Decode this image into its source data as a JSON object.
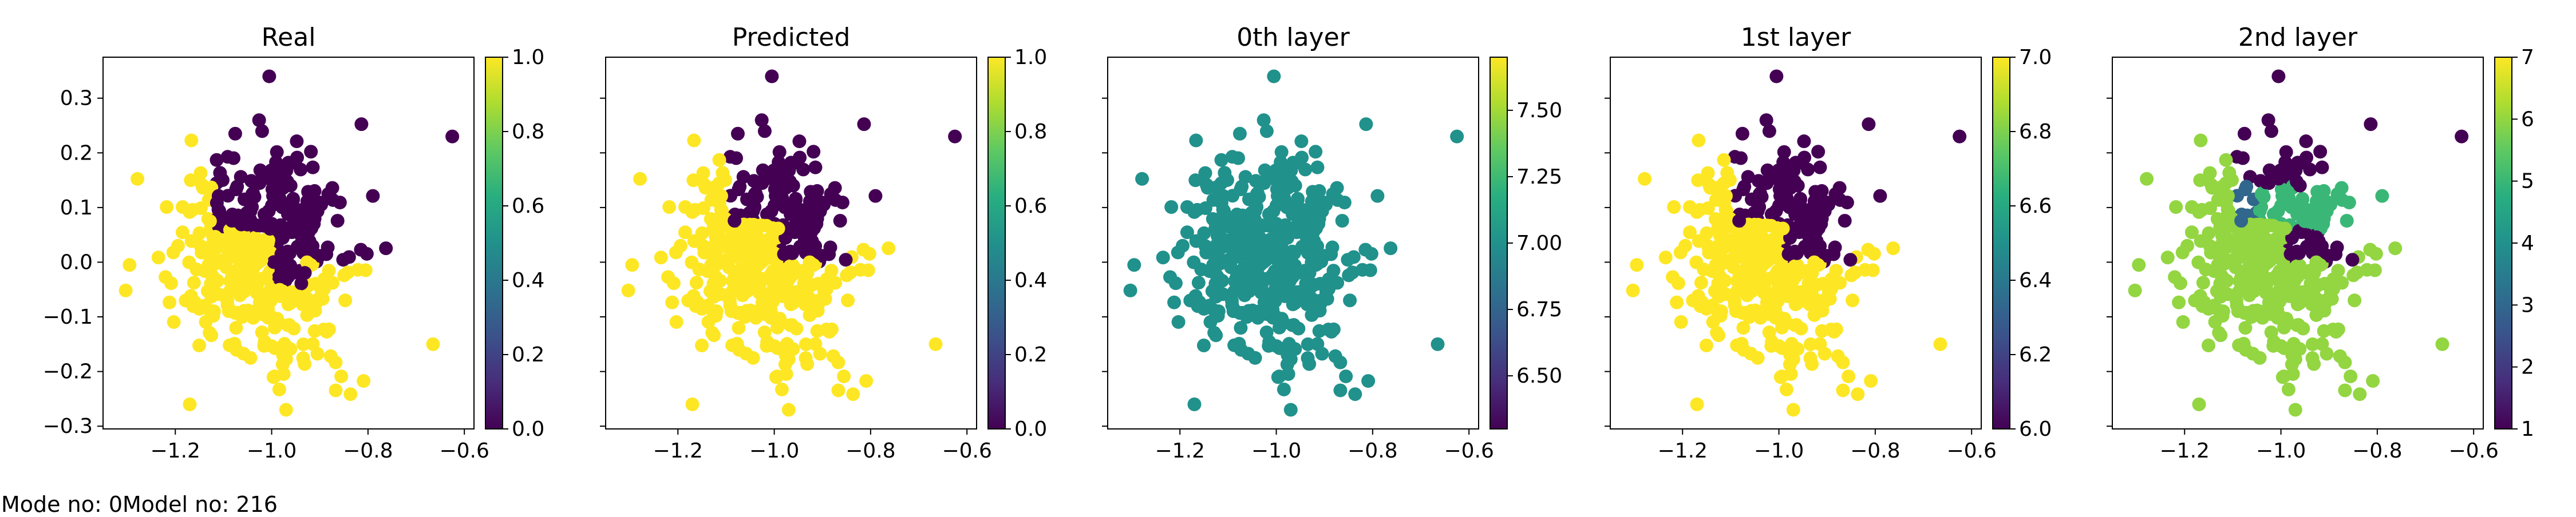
{
  "footer": {
    "text": "Mode no: 0Model no: 216"
  },
  "chart_data": [
    {
      "type": "scatter",
      "title": "Real",
      "xlabel": "",
      "ylabel": "",
      "xlim": [
        -1.35,
        -0.58
      ],
      "ylim": [
        -0.305,
        0.375
      ],
      "xticks": [
        -1.2,
        -1.0,
        -0.8,
        -0.6
      ],
      "xtick_labels": [
        "−1.2",
        "−1.0",
        "−0.8",
        "−0.6"
      ],
      "yticks": [
        -0.3,
        -0.2,
        -0.1,
        0.0,
        0.1,
        0.2,
        0.3
      ],
      "ytick_labels": [
        "−0.3",
        "−0.2",
        "−0.1",
        "0.0",
        "0.1",
        "0.2",
        "0.3"
      ],
      "show_y_tick_labels": true,
      "colormap": "viridis",
      "colorbar": {
        "vmin": 0.0,
        "vmax": 1.0,
        "ticks": [
          0.0,
          0.2,
          0.4,
          0.6,
          0.8,
          1.0
        ],
        "tick_labels": [
          "0.0",
          "0.2",
          "0.4",
          "0.6",
          "0.8",
          "1.0"
        ]
      },
      "color_rule": "real",
      "grid": false
    },
    {
      "type": "scatter",
      "title": "Predicted",
      "xlabel": "",
      "ylabel": "",
      "xlim": [
        -1.35,
        -0.58
      ],
      "ylim": [
        -0.305,
        0.375
      ],
      "xticks": [
        -1.2,
        -1.0,
        -0.8,
        -0.6
      ],
      "xtick_labels": [
        "−1.2",
        "−1.0",
        "−0.8",
        "−0.6"
      ],
      "yticks": [
        -0.3,
        -0.2,
        -0.1,
        0.0,
        0.1,
        0.2,
        0.3
      ],
      "ytick_labels": [],
      "show_y_tick_labels": false,
      "colormap": "viridis",
      "colorbar": {
        "vmin": 0.0,
        "vmax": 1.0,
        "ticks": [
          0.0,
          0.2,
          0.4,
          0.6,
          0.8,
          1.0
        ],
        "tick_labels": [
          "0.0",
          "0.2",
          "0.4",
          "0.6",
          "0.8",
          "1.0"
        ]
      },
      "color_rule": "predicted",
      "grid": false
    },
    {
      "type": "scatter",
      "title": "0th layer",
      "xlabel": "",
      "ylabel": "",
      "xlim": [
        -1.35,
        -0.58
      ],
      "ylim": [
        -0.305,
        0.375
      ],
      "xticks": [
        -1.2,
        -1.0,
        -0.8,
        -0.6
      ],
      "xtick_labels": [
        "−1.2",
        "−1.0",
        "−0.8",
        "−0.6"
      ],
      "yticks": [
        -0.3,
        -0.2,
        -0.1,
        0.0,
        0.1,
        0.2,
        0.3
      ],
      "ytick_labels": [],
      "show_y_tick_labels": false,
      "colormap": "viridis",
      "colorbar": {
        "vmin": 6.3,
        "vmax": 7.7,
        "ticks": [
          6.5,
          6.75,
          7.0,
          7.25,
          7.5
        ],
        "tick_labels": [
          "6.50",
          "6.75",
          "7.00",
          "7.25",
          "7.50"
        ]
      },
      "color_rule": "layer0",
      "grid": false
    },
    {
      "type": "scatter",
      "title": "1st layer",
      "xlabel": "",
      "ylabel": "",
      "xlim": [
        -1.35,
        -0.58
      ],
      "ylim": [
        -0.305,
        0.375
      ],
      "xticks": [
        -1.2,
        -1.0,
        -0.8,
        -0.6
      ],
      "xtick_labels": [
        "−1.2",
        "−1.0",
        "−0.8",
        "−0.6"
      ],
      "yticks": [
        -0.3,
        -0.2,
        -0.1,
        0.0,
        0.1,
        0.2,
        0.3
      ],
      "ytick_labels": [],
      "show_y_tick_labels": false,
      "colormap": "viridis",
      "colorbar": {
        "vmin": 6.0,
        "vmax": 7.0,
        "ticks": [
          6.0,
          6.2,
          6.4,
          6.6,
          6.8,
          7.0
        ],
        "tick_labels": [
          "6.0",
          "6.2",
          "6.4",
          "6.6",
          "6.8",
          "7.0"
        ]
      },
      "color_rule": "layer1",
      "grid": false
    },
    {
      "type": "scatter",
      "title": "2nd layer",
      "xlabel": "",
      "ylabel": "",
      "xlim": [
        -1.35,
        -0.58
      ],
      "ylim": [
        -0.305,
        0.375
      ],
      "xticks": [
        -1.2,
        -1.0,
        -0.8,
        -0.6
      ],
      "xtick_labels": [
        "−1.2",
        "−1.0",
        "−0.8",
        "−0.6"
      ],
      "yticks": [
        -0.3,
        -0.2,
        -0.1,
        0.0,
        0.1,
        0.2,
        0.3
      ],
      "ytick_labels": [],
      "show_y_tick_labels": false,
      "colormap": "viridis",
      "colorbar": {
        "vmin": 1,
        "vmax": 7,
        "ticks": [
          1,
          2,
          3,
          4,
          5,
          6,
          7
        ],
        "tick_labels": [
          "1",
          "2",
          "3",
          "4",
          "5",
          "6",
          "7"
        ]
      },
      "color_rule": "layer2",
      "grid": false
    }
  ]
}
